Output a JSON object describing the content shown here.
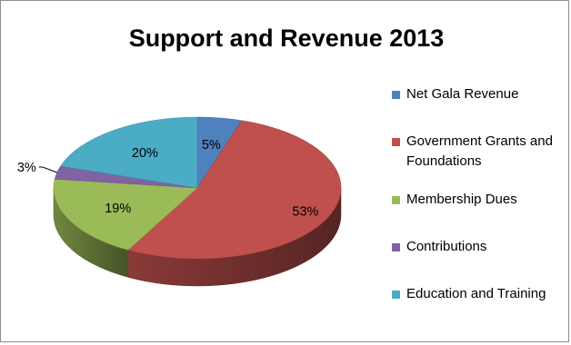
{
  "chart_data": {
    "type": "pie",
    "title": "Support and Revenue 2013",
    "slices": [
      {
        "label": "Net Gala Revenue",
        "value": 5,
        "value_label": "5%",
        "color": "#4F81BD"
      },
      {
        "label": "Government Grants and Foundations",
        "value": 53,
        "value_label": "53%",
        "color": "#C0504D"
      },
      {
        "label": "Membership Dues",
        "value": 19,
        "value_label": "19%",
        "color": "#9BBB59"
      },
      {
        "label": "Contributions",
        "value": 3,
        "value_label": "3%",
        "color": "#8064A2"
      },
      {
        "label": "Education and Training",
        "value": 20,
        "value_label": "20%",
        "color": "#4BACC6"
      }
    ],
    "style": "3d",
    "legend_position": "right"
  }
}
